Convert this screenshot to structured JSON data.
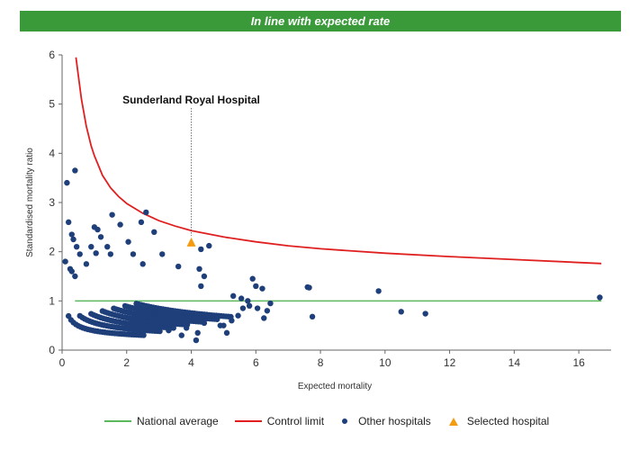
{
  "banner": {
    "text": "In line with expected rate"
  },
  "colors": {
    "banner_bg": "#3a9a3a",
    "national": "#5cb85c",
    "control": "#e02020",
    "other": "#1e3f7a",
    "selected": "#f39c12"
  },
  "legend": {
    "national": "National average",
    "control": "Control limit",
    "other": "Other hospitals",
    "selected": "Selected hospital"
  },
  "chart_data": {
    "type": "scatter",
    "xlabel": "Expected mortality",
    "ylabel": "Standardised mortality ratio",
    "xlim": [
      0,
      17
    ],
    "ylim": [
      0,
      6
    ],
    "xticks": [
      0,
      2,
      4,
      6,
      8,
      10,
      12,
      14,
      16
    ],
    "yticks": [
      0,
      1,
      2,
      3,
      4,
      5,
      6
    ],
    "national_average": 1,
    "control_limit": {
      "points": [
        [
          0.43,
          5.95
        ],
        [
          0.5,
          5.6
        ],
        [
          0.6,
          5.1
        ],
        [
          0.75,
          4.55
        ],
        [
          0.9,
          4.15
        ],
        [
          1.0,
          3.95
        ],
        [
          1.25,
          3.55
        ],
        [
          1.5,
          3.3
        ],
        [
          1.75,
          3.12
        ],
        [
          2.0,
          2.98
        ],
        [
          2.5,
          2.78
        ],
        [
          3.0,
          2.63
        ],
        [
          3.5,
          2.52
        ],
        [
          4.0,
          2.43
        ],
        [
          5.0,
          2.3
        ],
        [
          6.0,
          2.2
        ],
        [
          7.0,
          2.12
        ],
        [
          8.0,
          2.06
        ],
        [
          10.0,
          1.97
        ],
        [
          12.0,
          1.9
        ],
        [
          14.0,
          1.84
        ],
        [
          16.7,
          1.76
        ]
      ]
    },
    "selected_hospital": {
      "name": "Sunderland Royal Hospital",
      "x": 4.0,
      "y": 2.18
    },
    "other_hospitals": [
      [
        0.15,
        3.4
      ],
      [
        0.4,
        3.65
      ],
      [
        0.2,
        2.6
      ],
      [
        0.3,
        2.35
      ],
      [
        0.35,
        2.25
      ],
      [
        0.45,
        2.1
      ],
      [
        0.55,
        1.95
      ],
      [
        0.75,
        1.75
      ],
      [
        0.3,
        1.6
      ],
      [
        0.4,
        1.5
      ],
      [
        0.1,
        1.8
      ],
      [
        0.25,
        1.65
      ],
      [
        1.0,
        2.5
      ],
      [
        1.1,
        2.45
      ],
      [
        1.2,
        2.3
      ],
      [
        0.9,
        2.1
      ],
      [
        1.05,
        1.97
      ],
      [
        1.4,
        2.1
      ],
      [
        1.5,
        1.95
      ],
      [
        1.55,
        2.75
      ],
      [
        1.8,
        2.55
      ],
      [
        2.45,
        2.6
      ],
      [
        2.6,
        2.8
      ],
      [
        2.85,
        2.4
      ],
      [
        2.05,
        2.2
      ],
      [
        2.2,
        1.95
      ],
      [
        2.5,
        1.75
      ],
      [
        3.1,
        1.95
      ],
      [
        3.6,
        1.7
      ],
      [
        4.3,
        2.05
      ],
      [
        4.55,
        2.12
      ],
      [
        4.25,
        1.65
      ],
      [
        4.4,
        1.5
      ],
      [
        4.3,
        1.3
      ],
      [
        5.3,
        1.1
      ],
      [
        5.55,
        1.05
      ],
      [
        5.75,
        1.0
      ],
      [
        5.9,
        1.45
      ],
      [
        6.0,
        1.3
      ],
      [
        6.2,
        1.25
      ],
      [
        6.45,
        0.95
      ],
      [
        6.35,
        0.8
      ],
      [
        6.25,
        0.65
      ],
      [
        6.05,
        0.85
      ],
      [
        5.8,
        0.9
      ],
      [
        5.6,
        0.85
      ],
      [
        5.45,
        0.7
      ],
      [
        5.25,
        0.6
      ],
      [
        5.0,
        0.5
      ],
      [
        5.1,
        0.35
      ],
      [
        4.7,
        0.65
      ],
      [
        4.9,
        0.5
      ],
      [
        4.4,
        0.55
      ],
      [
        4.2,
        0.35
      ],
      [
        4.15,
        0.2
      ],
      [
        3.85,
        0.45
      ],
      [
        3.7,
        0.3
      ],
      [
        3.3,
        0.4
      ],
      [
        7.6,
        1.28
      ],
      [
        7.65,
        1.27
      ],
      [
        7.75,
        0.68
      ],
      [
        9.8,
        1.2
      ],
      [
        10.5,
        0.78
      ],
      [
        11.25,
        0.74
      ],
      [
        16.65,
        1.07
      ]
    ]
  }
}
